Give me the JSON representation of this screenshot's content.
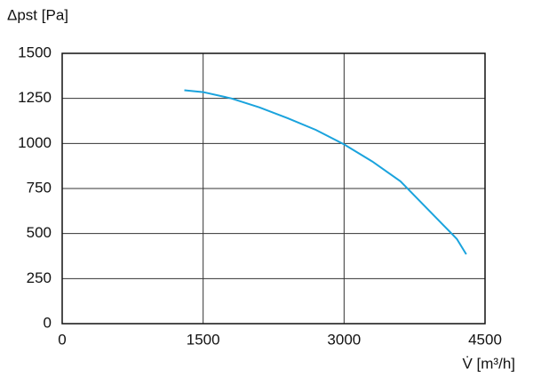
{
  "chart_data": {
    "type": "line",
    "y_label": "Δpst [Pa]",
    "x_label": "V̇ [m³/h]",
    "xlim": [
      0,
      4500
    ],
    "xticks": [
      0,
      1500,
      3000,
      4500
    ],
    "ylim": [
      0,
      1500
    ],
    "yticks": [
      0,
      250,
      500,
      750,
      1000,
      1250,
      1500
    ],
    "grid": true,
    "series": [
      {
        "color": "#1aa3dd",
        "x": [
          1300,
          1500,
          1800,
          2100,
          2400,
          2700,
          3000,
          3300,
          3600,
          3900,
          4200,
          4300
        ],
        "values": [
          1295,
          1285,
          1250,
          1200,
          1140,
          1075,
          995,
          900,
          790,
          630,
          470,
          385
        ]
      }
    ]
  }
}
